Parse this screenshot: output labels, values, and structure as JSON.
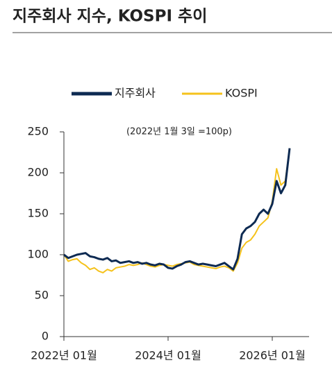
{
  "chart_data": {
    "type": "line",
    "title": "지주회사 지수, KOSPI 추이",
    "annotation": "(2022년 1월 3일 =100p)",
    "categories": [
      "2022년 01월",
      null,
      null,
      null,
      null,
      null,
      null,
      null,
      null,
      null,
      null,
      null,
      null,
      null,
      null,
      null,
      null,
      null,
      null,
      null,
      null,
      null,
      null,
      null,
      "2024년 01월",
      null,
      null,
      null,
      null,
      null,
      null,
      null,
      null,
      null,
      null,
      null,
      null,
      null,
      null,
      null,
      null,
      null,
      null,
      null,
      null,
      null,
      null,
      null,
      "2026년 01월",
      null,
      null,
      null,
      null
    ],
    "series": [
      {
        "name": "지주회사",
        "color": "#0d2a52",
        "values": [
          100,
          96,
          98,
          100,
          101,
          102,
          98,
          97,
          95,
          94,
          96,
          92,
          93,
          90,
          91,
          92,
          90,
          91,
          89,
          90,
          88,
          87,
          89,
          88,
          84,
          83,
          86,
          88,
          91,
          92,
          90,
          88,
          89,
          88,
          87,
          86,
          88,
          90,
          86,
          82,
          95,
          125,
          132,
          135,
          140,
          150,
          155,
          150,
          162,
          190,
          175,
          185,
          230
        ]
      },
      {
        "name": "KOSPI",
        "color": "#f5c21b",
        "values": [
          100,
          92,
          94,
          95,
          90,
          87,
          82,
          84,
          80,
          78,
          82,
          80,
          84,
          85,
          86,
          88,
          87,
          88,
          90,
          88,
          86,
          85,
          87,
          88,
          87,
          86,
          88,
          89,
          90,
          91,
          88,
          87,
          86,
          85,
          84,
          83,
          85,
          86,
          84,
          80,
          90,
          108,
          115,
          118,
          125,
          135,
          140,
          145,
          165,
          205,
          185,
          190,
          230
        ]
      }
    ],
    "ylim": [
      0,
      250
    ],
    "yticks": [
      0,
      50,
      100,
      150,
      200,
      250
    ],
    "legend": "top"
  }
}
